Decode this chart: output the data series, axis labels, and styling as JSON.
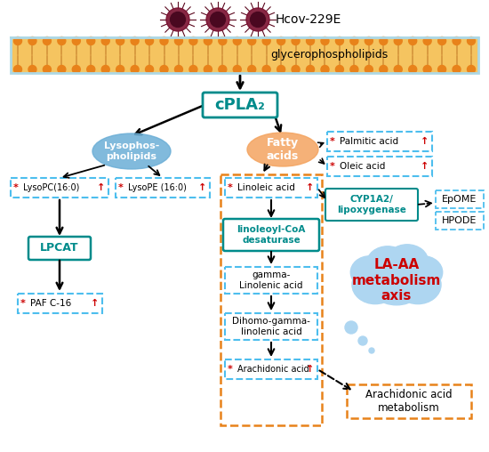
{
  "title": "Hcov-229E",
  "membrane_label": "glycerophospholipids",
  "cpla2_label": "cPLA₂",
  "lysophos_label": "Lysophos-\npholipids",
  "fatty_acids_label": "Fatty\nacids",
  "lpcat_label": "LPCAT",
  "lysopc_label": "LysoPC(16:0)",
  "lysope_label": "LysoPE (16:0)",
  "pafc16_label": "PAF C-16",
  "palmitic_label": "Palmitic acid",
  "oleic_label": "Oleic acid",
  "linoleic_label": "Linoleic acid",
  "linoleoyl_label": "linoleoyl-CoA\ndesaturase",
  "gamma_label": "gamma-\nLinolenic acid",
  "dihomo_label": "Dihomo-gamma-\nlinolenic acid",
  "arachidonic_label": "Arachidonic acid",
  "cyp1a2_label": "CYP1A2/\nlipoxygenase",
  "epome_label": "EpOME",
  "hpode_label": "HPODE",
  "laaa_label": "LA-AA\nmetabolism\naxis",
  "arachidonic_metabolism_label": "Arachidonic acid\nmetabolism",
  "membrane_orange": "#E8821A",
  "membrane_fill": "#F5C460",
  "membrane_top_border": "#ADD8E6",
  "teal_color": "#008B8B",
  "blue_ellipse_color": "#6BAED6",
  "peach_ellipse_color": "#F4A460",
  "dashed_box_color": "#4DBEEE",
  "orange_box_color": "#E8821A",
  "cloud_blue_color": "#AED6F1",
  "cloud_border_color": "#E8821A",
  "red_color": "#CC0000",
  "black_color": "#000000",
  "white_color": "#FFFFFF",
  "bg_color": "#FFFFFF"
}
